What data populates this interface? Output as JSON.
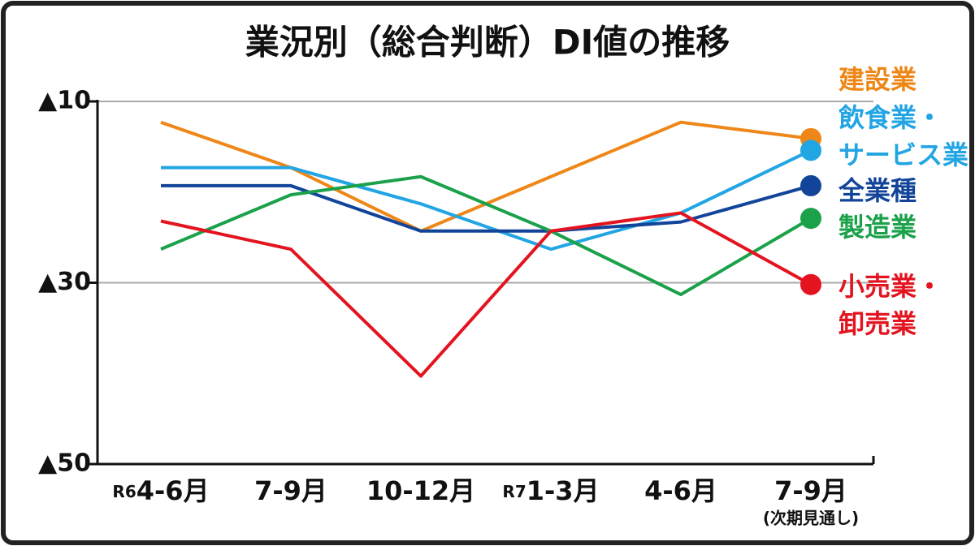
{
  "chart_data": {
    "type": "line",
    "title": "業況別（総合判断）DI値の推移",
    "categories": [
      "4-6月",
      "7-9月",
      "10-12月",
      "1-3月",
      "4-6月",
      "7-9月"
    ],
    "category_prefixes": [
      "R6",
      null,
      null,
      "R7",
      null,
      null
    ],
    "x_note": "(次期見通し)",
    "ylim": [
      -50,
      -10
    ],
    "yticks": [
      {
        "value": -10,
        "label": "▲10"
      },
      {
        "value": -30,
        "label": "▲30"
      },
      {
        "value": -50,
        "label": "▲50"
      }
    ],
    "grid": true,
    "series": [
      {
        "name": "建設業",
        "color": "#ee8717",
        "values": [
          -12.3,
          -17.3,
          -24.3,
          -18.3,
          -12.3,
          -14.1
        ]
      },
      {
        "name": "飲食業・サービス業",
        "color": "#22a5e3",
        "values": [
          -17.3,
          -17.3,
          -21.3,
          -26.3,
          -22.3,
          -15.4
        ]
      },
      {
        "name": "全業種",
        "color": "#12449a",
        "values": [
          -19.3,
          -19.3,
          -24.3,
          -24.3,
          -23.3,
          -19.3
        ]
      },
      {
        "name": "製造業",
        "color": "#1aa14a",
        "values": [
          -26.3,
          -20.3,
          -18.3,
          -24.3,
          -31.3,
          -22.9
        ]
      },
      {
        "name": "小売業・卸売業",
        "color": "#e3141f",
        "values": [
          -23.2,
          -26.3,
          -40.3,
          -24.3,
          -22.3,
          -30.2
        ]
      }
    ]
  }
}
